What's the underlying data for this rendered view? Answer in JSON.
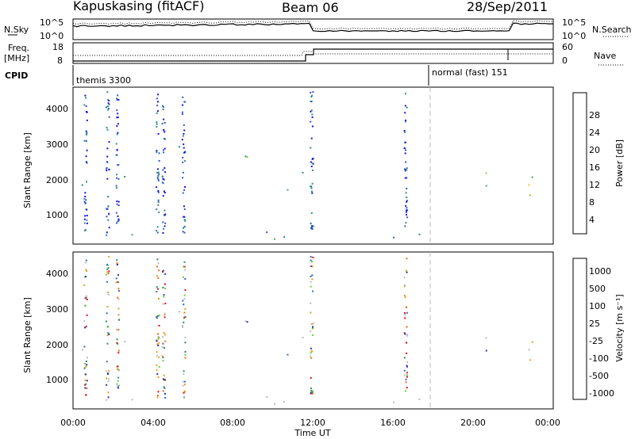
{
  "header": {
    "station": "Kapuskasing (fitACF)",
    "beam": "Beam 06",
    "date": "28/Sep/2011"
  },
  "top_panels": {
    "nsky_label": "N.Sky",
    "nsearch_label": "N.Search",
    "noise_ticks": [
      "10^5",
      "10^0"
    ],
    "freq_label_1": "Freq.",
    "freq_label_2": "[MHz]",
    "freq_ticks": [
      "18",
      "8"
    ],
    "nave_label": "Nave",
    "nave_ticks": [
      "60",
      "0"
    ],
    "cpid_label": "CPID",
    "cpid_1": "themis 3300",
    "cpid_2": "normal (fast) 151"
  },
  "colors": {
    "power": [
      "#1111dd",
      "#3355cc",
      "#338888",
      "#44aa66",
      "#88cc33",
      "#ddcc22",
      "#ee8811",
      "#dd2222"
    ],
    "velocity": [
      "#2233aa",
      "#3366cc",
      "#338855",
      "#66cc44",
      "#bbbbbb",
      "#ee9922",
      "#ee6611",
      "#dd1111"
    ],
    "ground_scatter": "#bbbbbb"
  },
  "chart_data": [
    {
      "type": "heatmap",
      "panel": "power",
      "ylabel": "Slant Range [km]",
      "yticks": [
        "1000",
        "2000",
        "3000",
        "4000"
      ],
      "ylim": [
        200,
        4500
      ],
      "xlim": [
        0,
        24
      ],
      "colorbar_label": "Power [dB]",
      "colorbar_ticks": [
        "4",
        "8",
        "12",
        "16",
        "20",
        "24",
        "28"
      ],
      "colorbar_range": [
        0,
        30
      ],
      "scatter_regions": [
        {
          "t0": 0.0,
          "t1": 0.8,
          "r0": 900,
          "r1": 1900,
          "value": 14
        },
        {
          "t0": 1.5,
          "t1": 4.5,
          "r0": 1600,
          "r1": 2300,
          "value": 12
        },
        {
          "t0": 4.5,
          "t1": 9.0,
          "r0": 2300,
          "r1": 2900,
          "value": 10
        },
        {
          "t0": 10.5,
          "t1": 12.2,
          "r0": 1400,
          "r1": 2600,
          "value": 8
        },
        {
          "t0": 0.0,
          "t1": 18.0,
          "r0": 250,
          "r1": 600,
          "value": 10
        },
        {
          "t0": 17.8,
          "t1": 18.6,
          "r0": 2300,
          "r1": 2700,
          "value": 6
        },
        {
          "t0": 19.5,
          "t1": 22.0,
          "r0": 1600,
          "r1": 2300,
          "value": 11
        },
        {
          "t0": 22.0,
          "t1": 24.0,
          "r0": 900,
          "r1": 2100,
          "value": 16
        }
      ]
    },
    {
      "type": "heatmap",
      "panel": "velocity",
      "ylabel": "Slant Range [km]",
      "yticks": [
        "1000",
        "2000",
        "3000",
        "4000"
      ],
      "ylim": [
        200,
        4500
      ],
      "xlim": [
        0,
        24
      ],
      "colorbar_label": "Velocity [m s⁻¹]",
      "colorbar_ticks": [
        "1000",
        "500",
        "100",
        "25",
        "-25",
        "-100",
        "-500",
        "-1000"
      ],
      "xticks": [
        "00:00",
        "04:00",
        "08:00",
        "12:00",
        "16:00",
        "20:00",
        "00:00"
      ],
      "xlabel": "Time UT"
    }
  ]
}
